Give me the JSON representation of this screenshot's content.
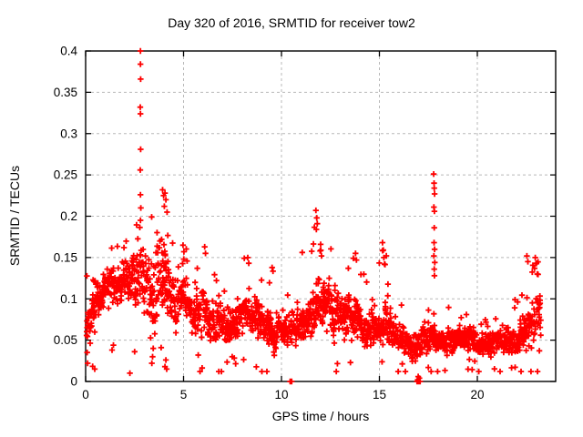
{
  "chart_data": {
    "type": "scatter",
    "title": "Day 320 of 2016, SRMTID for receiver tow2",
    "xlabel": "GPS time / hours",
    "ylabel": "SRMTID / TECUs",
    "series_name": "SRMTID",
    "legend": "none",
    "xlim": [
      0,
      24
    ],
    "ylim": [
      0,
      0.4
    ],
    "xticks": [
      0,
      5,
      10,
      15,
      20
    ],
    "xtick_labels": [
      "0",
      "5",
      "10",
      "15",
      "20"
    ],
    "yticks": [
      0,
      0.05,
      0.1,
      0.15,
      0.2,
      0.25,
      0.3,
      0.35,
      0.4
    ],
    "ytick_labels": [
      "0",
      "0.05",
      "0.1",
      "0.15",
      "0.2",
      "0.25",
      "0.3",
      "0.35",
      "0.4"
    ],
    "grid": true,
    "grid_color": "#b8b8b8",
    "border_color": "#000000",
    "marker": "plus",
    "marker_color": "#ff0000",
    "background_color": "#ffffff",
    "seed": 320161,
    "time_range": [
      0.06,
      23.25
    ],
    "column_step_hours": 0.033,
    "points_per_column": [
      2,
      4
    ],
    "spike_probability": 0.05,
    "dip_probability": 0.02,
    "band_profile": {
      "hours": [
        0.0,
        0.3,
        0.7,
        1.0,
        1.5,
        2.0,
        2.4,
        2.8,
        3.1,
        3.5,
        3.9,
        4.2,
        4.6,
        5.0,
        5.5,
        6.0,
        6.5,
        7.0,
        7.5,
        8.0,
        8.5,
        9.0,
        9.5,
        10.0,
        10.5,
        11.0,
        11.5,
        12.0,
        12.5,
        13.0,
        13.5,
        14.0,
        14.5,
        15.0,
        15.3,
        15.7,
        16.2,
        16.7,
        17.2,
        17.8,
        18.2,
        18.7,
        19.2,
        19.7,
        20.2,
        20.7,
        21.2,
        21.7,
        22.2,
        22.7,
        23.0,
        23.3
      ],
      "mid": [
        0.055,
        0.085,
        0.1,
        0.11,
        0.12,
        0.125,
        0.12,
        0.13,
        0.12,
        0.11,
        0.13,
        0.115,
        0.09,
        0.095,
        0.085,
        0.08,
        0.075,
        0.07,
        0.065,
        0.075,
        0.08,
        0.07,
        0.062,
        0.058,
        0.062,
        0.07,
        0.082,
        0.092,
        0.088,
        0.08,
        0.078,
        0.068,
        0.062,
        0.062,
        0.075,
        0.058,
        0.05,
        0.042,
        0.045,
        0.055,
        0.052,
        0.048,
        0.052,
        0.05,
        0.048,
        0.045,
        0.048,
        0.05,
        0.055,
        0.068,
        0.078,
        0.085
      ],
      "halfwidth": [
        0.03,
        0.035,
        0.028,
        0.028,
        0.03,
        0.035,
        0.04,
        0.045,
        0.048,
        0.05,
        0.055,
        0.055,
        0.032,
        0.03,
        0.032,
        0.032,
        0.028,
        0.026,
        0.024,
        0.028,
        0.03,
        0.028,
        0.026,
        0.024,
        0.026,
        0.03,
        0.035,
        0.04,
        0.036,
        0.032,
        0.032,
        0.028,
        0.024,
        0.024,
        0.035,
        0.022,
        0.022,
        0.018,
        0.02,
        0.022,
        0.02,
        0.018,
        0.018,
        0.018,
        0.016,
        0.016,
        0.018,
        0.02,
        0.022,
        0.03,
        0.032,
        0.028
      ],
      "spike_max": [
        0.15,
        0.15,
        0.145,
        0.16,
        0.17,
        0.19,
        0.185,
        0.205,
        0.2,
        0.215,
        0.23,
        0.22,
        0.14,
        0.165,
        0.15,
        0.16,
        0.135,
        0.13,
        0.125,
        0.15,
        0.15,
        0.135,
        0.14,
        0.14,
        0.125,
        0.16,
        0.195,
        0.205,
        0.17,
        0.155,
        0.16,
        0.135,
        0.125,
        0.165,
        0.165,
        0.105,
        0.095,
        0.082,
        0.085,
        0.095,
        0.1,
        0.085,
        0.085,
        0.085,
        0.08,
        0.075,
        0.082,
        0.09,
        0.115,
        0.15,
        0.15,
        0.135
      ]
    },
    "outlier_points": [
      [
        2.8,
        0.4
      ],
      [
        2.8,
        0.384
      ],
      [
        2.81,
        0.366
      ],
      [
        2.79,
        0.332
      ],
      [
        2.8,
        0.324
      ],
      [
        2.81,
        0.281
      ],
      [
        2.79,
        0.256
      ],
      [
        2.8,
        0.226
      ],
      [
        2.82,
        0.21
      ],
      [
        2.8,
        0.195
      ],
      [
        3.93,
        0.232
      ],
      [
        3.98,
        0.225
      ],
      [
        4.05,
        0.228
      ],
      [
        4.1,
        0.22
      ],
      [
        4.02,
        0.212
      ],
      [
        4.16,
        0.205
      ],
      [
        2.26,
        0.01
      ],
      [
        2.5,
        0.036
      ],
      [
        3.38,
        0.022
      ],
      [
        3.42,
        0.03
      ],
      [
        3.45,
        0.04
      ],
      [
        4.05,
        0.018
      ],
      [
        4.1,
        0.026
      ],
      [
        4.14,
        0.015
      ],
      [
        1.35,
        0.038
      ],
      [
        1.42,
        0.044
      ],
      [
        5.75,
        0.032
      ],
      [
        0.1,
        0.022
      ],
      [
        0.08,
        0.035
      ],
      [
        4.97,
        0.165
      ],
      [
        5.02,
        0.157
      ],
      [
        6.08,
        0.163
      ],
      [
        6.12,
        0.155
      ],
      [
        8.28,
        0.15
      ],
      [
        8.33,
        0.143
      ],
      [
        9.52,
        0.138
      ],
      [
        11.76,
        0.207
      ],
      [
        11.8,
        0.198
      ],
      [
        11.83,
        0.191
      ],
      [
        11.78,
        0.184
      ],
      [
        12.0,
        0.166
      ],
      [
        11.97,
        0.158
      ],
      [
        12.04,
        0.152
      ],
      [
        13.78,
        0.155
      ],
      [
        13.83,
        0.147
      ],
      [
        15.16,
        0.168
      ],
      [
        15.2,
        0.159
      ],
      [
        15.23,
        0.15
      ],
      [
        15.26,
        0.142
      ],
      [
        17.77,
        0.251
      ],
      [
        17.79,
        0.24
      ],
      [
        17.8,
        0.234
      ],
      [
        17.82,
        0.227
      ],
      [
        17.78,
        0.211
      ],
      [
        17.81,
        0.206
      ],
      [
        17.8,
        0.186
      ],
      [
        17.79,
        0.168
      ],
      [
        17.82,
        0.16
      ],
      [
        17.78,
        0.152
      ],
      [
        17.83,
        0.144
      ],
      [
        17.8,
        0.136
      ],
      [
        17.81,
        0.128
      ],
      [
        22.53,
        0.152
      ],
      [
        22.58,
        0.145
      ],
      [
        22.96,
        0.15
      ],
      [
        23.02,
        0.143
      ],
      [
        22.92,
        0.137
      ],
      [
        23.06,
        0.13
      ]
    ],
    "zero_points": [
      [
        10.44,
        0.0
      ],
      [
        10.52,
        0.0
      ],
      [
        16.92,
        0.0
      ],
      [
        16.96,
        0.002
      ],
      [
        17.0,
        0.0
      ],
      [
        17.04,
        0.004
      ],
      [
        17.08,
        0.0
      ],
      [
        16.98,
        0.006
      ],
      [
        17.02,
        0.0
      ]
    ]
  }
}
